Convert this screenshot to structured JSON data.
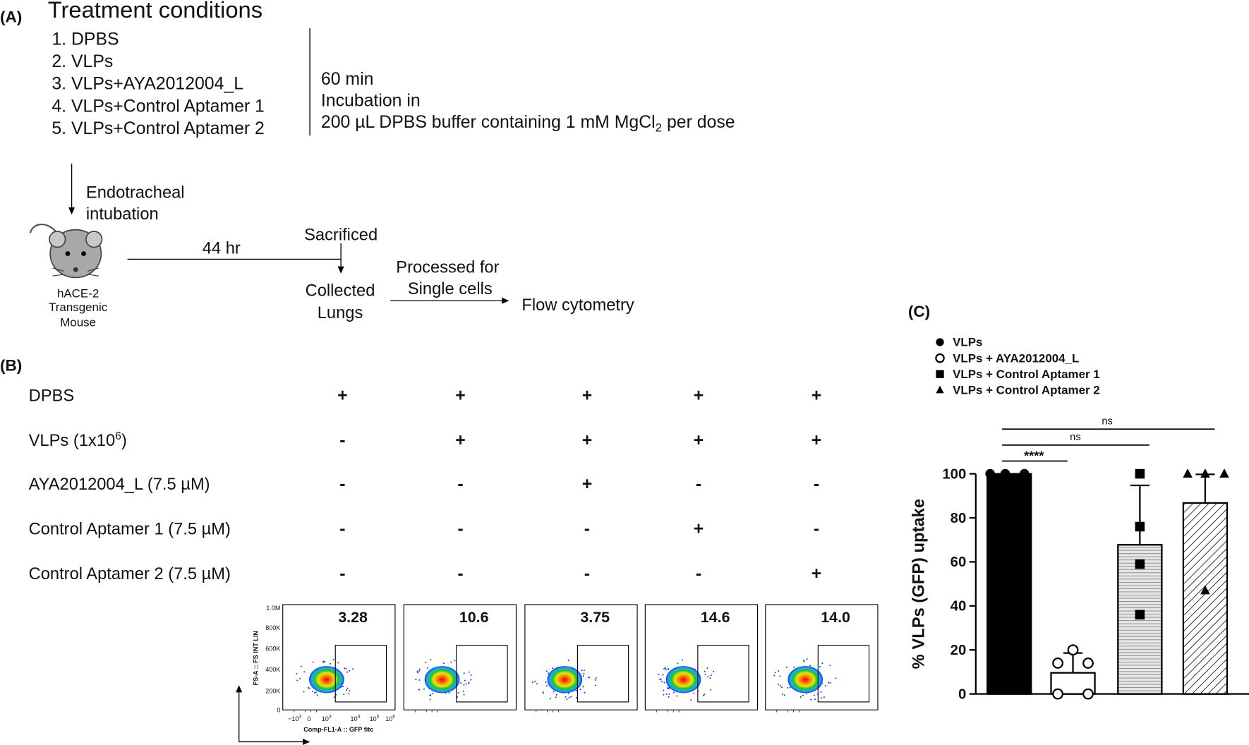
{
  "panel_a": {
    "label": "(A)",
    "title": "Treatment conditions",
    "conditions": [
      "1.  DPBS",
      "2.  VLPs",
      "3.  VLPs+AYA2012004_L",
      "4.  VLPs+Control Aptamer 1",
      "5.  VLPs+Control Aptamer 2"
    ],
    "incubation": [
      "60 min",
      "Incubation in"
    ],
    "buffer": {
      "text": "200 µL DPBS buffer containing 1 mM MgCl",
      "sub": "2",
      "rest": " per dose"
    },
    "route": [
      "Endotracheal",
      "intubation"
    ],
    "mouse": [
      "hACE-2",
      "Transgenic",
      "Mouse"
    ],
    "time": "44 hr",
    "sacrificed": "Sacrificed",
    "collected": [
      "Collected",
      "Lungs"
    ],
    "processed": [
      "Processed for",
      "Single cells"
    ],
    "readout": "Flow cytometry"
  },
  "panel_b": {
    "label": "(B)",
    "rows": [
      {
        "label": "DPBS",
        "marks": [
          "+",
          "+",
          "+",
          "+",
          "+"
        ]
      },
      {
        "label": "VLPs  (1x10",
        "sup": "6",
        "label_end": ")",
        "marks": [
          "-",
          "+",
          "+",
          "+",
          "+"
        ]
      },
      {
        "label": "AYA2012004_L (7.5 µM)",
        "marks": [
          "-",
          "-",
          "+",
          "-",
          "-"
        ]
      },
      {
        "label": "Control Aptamer 1 (7.5 µM)",
        "marks": [
          "-",
          "-",
          "-",
          "+",
          "-"
        ]
      },
      {
        "label": "Control Aptamer 2 (7.5 µM)",
        "marks": [
          "-",
          "-",
          "-",
          "-",
          "+"
        ]
      }
    ],
    "plots": [
      "3.28",
      "10.6",
      "3.75",
      "14.6",
      "14.0"
    ],
    "y_axis_label": "FS-A :: FS INT LIN",
    "x_axis_label": "Comp-FL1-A :: GFP fitc",
    "yticks": [
      "1.0M",
      "800K",
      "600K",
      "400K",
      "200K",
      "0"
    ],
    "xticks": [
      {
        "text": "−10",
        "sup": "3"
      },
      {
        "text": "0"
      },
      {
        "text": "10",
        "sup": "3"
      },
      {
        "text": "10",
        "sup": "4"
      },
      {
        "text": "10",
        "sup": "5"
      },
      {
        "text": "10",
        "sup": "6"
      }
    ]
  },
  "chart_data": {
    "type": "bar",
    "label": "(C)",
    "ylabel": "% VLPs (GFP) uptake",
    "ylim": [
      0,
      100
    ],
    "yticks": [
      0,
      20,
      40,
      60,
      80,
      100
    ],
    "series": [
      {
        "name": "VLPs",
        "marker": "circle",
        "fill": "#000000",
        "pattern": "none",
        "values": [
          100,
          100,
          100
        ],
        "mean": 100,
        "error": 0
      },
      {
        "name": "VLPs + AYA2012004_L",
        "marker": "open-circle",
        "fill": "#ffffff",
        "pattern": "none",
        "values": [
          20,
          14,
          14,
          0,
          0
        ],
        "mean": 9.6,
        "error": 9
      },
      {
        "name": "VLPs + Control Aptamer 1",
        "marker": "square",
        "fill": "#e6e6e6",
        "pattern": "horizontal",
        "values": [
          100,
          76,
          59,
          36
        ],
        "mean": 67.75,
        "error": 27
      },
      {
        "name": "VLPs + Control Aptamer 2",
        "marker": "triangle",
        "fill": "#ffffff",
        "pattern": "diagonal",
        "values": [
          100,
          100,
          100,
          47
        ],
        "mean": 86.75,
        "error": 13
      }
    ],
    "annotations": [
      "****",
      "ns",
      "ns"
    ]
  }
}
